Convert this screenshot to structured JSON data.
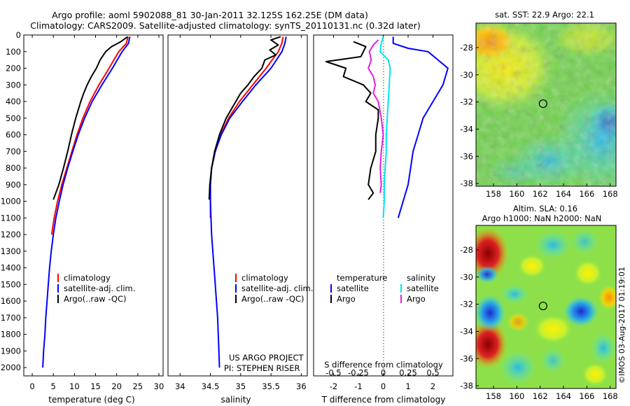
{
  "header": {
    "line1": "Argo profile: aoml 5902088_81 30-Jan-2011 32.125S 162.25E (DM data)",
    "line2": "Climatology: CARS2009. Satellite-adjusted climatology: synTS_20110131.nc (0.32d later)"
  },
  "colors": {
    "climatology": "#ff0000",
    "satellite": "#0000ff",
    "argo": "#000000",
    "salinity_sat": "#00e5ee",
    "salinity_argo": "#e020e0"
  },
  "chart_data": [
    {
      "type": "line",
      "id": "temperature",
      "xlabel": "temperature (deg C)",
      "xlim": [
        -2,
        31
      ],
      "ylim": [
        2050,
        0
      ],
      "xticks": [
        0,
        5,
        10,
        15,
        20,
        25,
        30
      ],
      "yticks": [
        0,
        100,
        200,
        300,
        400,
        500,
        600,
        700,
        800,
        900,
        1000,
        1100,
        1200,
        1300,
        1400,
        1500,
        1600,
        1700,
        1800,
        1900,
        2000
      ],
      "legend": [
        "climatology",
        "satellite-adj. clim.",
        "Argo(..raw -QC)"
      ],
      "series": [
        {
          "name": "climatology",
          "color": "#ff0000",
          "depth": [
            10,
            50,
            100,
            200,
            300,
            400,
            500,
            600,
            700,
            800,
            900,
            1000,
            1100,
            1200
          ],
          "values": [
            22.7,
            22.3,
            20.5,
            18.2,
            15.8,
            13.7,
            12.0,
            10.6,
            9.4,
            8.2,
            7.0,
            6.0,
            5.2,
            4.6
          ]
        },
        {
          "name": "satellite-adj. clim.",
          "color": "#0000ff",
          "depth": [
            10,
            50,
            100,
            200,
            300,
            400,
            500,
            600,
            700,
            800,
            900,
            1000,
            1100,
            1200,
            1300,
            1400,
            1500,
            1600,
            1700,
            1800,
            1900,
            2000
          ],
          "values": [
            23.1,
            22.8,
            21.3,
            19.0,
            16.5,
            14.2,
            12.4,
            10.9,
            9.6,
            8.4,
            7.3,
            6.4,
            5.6,
            5.0,
            4.5,
            4.1,
            3.8,
            3.5,
            3.2,
            3.0,
            2.7,
            2.5
          ]
        },
        {
          "name": "Argo(..raw -QC)",
          "color": "#000000",
          "depth": [
            10,
            40,
            70,
            100,
            150,
            200,
            250,
            300,
            350,
            400,
            450,
            500,
            600,
            700,
            800,
            900,
            990
          ],
          "values": [
            22.6,
            21.0,
            18.8,
            17.4,
            16.1,
            15.2,
            14.0,
            13.0,
            12.2,
            11.5,
            10.9,
            10.3,
            9.3,
            8.4,
            7.4,
            6.3,
            5.0
          ]
        }
      ]
    },
    {
      "type": "line",
      "id": "salinity",
      "xlabel": "salinity",
      "xlim": [
        33.8,
        36.1
      ],
      "ylim": [
        2050,
        0
      ],
      "xticks": [
        34,
        34.5,
        35,
        35.5,
        36
      ],
      "legend": [
        "climatology",
        "satellite-adj. clim.",
        "Argo(..raw -QC)"
      ],
      "credit": [
        "US ARGO PROJECT",
        "PI: STEPHEN RISER"
      ],
      "series": [
        {
          "name": "climatology",
          "color": "#ff0000",
          "depth": [
            10,
            50,
            100,
            200,
            300,
            400,
            500,
            600,
            700,
            800,
            900,
            1000,
            1100
          ],
          "values": [
            35.7,
            35.68,
            35.62,
            35.42,
            35.2,
            34.98,
            34.8,
            34.67,
            34.58,
            34.52,
            34.5,
            34.5,
            34.5
          ]
        },
        {
          "name": "satellite-adj. clim.",
          "color": "#0000ff",
          "depth": [
            10,
            50,
            100,
            200,
            300,
            400,
            500,
            600,
            700,
            800,
            900,
            1000,
            1100,
            1200,
            1300,
            1400,
            1500,
            1600,
            1700,
            1800,
            1900,
            2000
          ],
          "values": [
            35.75,
            35.73,
            35.68,
            35.5,
            35.25,
            35.03,
            34.82,
            34.68,
            34.58,
            34.52,
            34.5,
            34.5,
            34.51,
            34.52,
            34.54,
            34.56,
            34.58,
            34.6,
            34.62,
            34.63,
            34.64,
            34.65
          ]
        },
        {
          "name": "Argo(..raw -QC)",
          "color": "#000000",
          "depth": [
            10,
            30,
            60,
            90,
            120,
            150,
            200,
            250,
            300,
            350,
            400,
            500,
            600,
            700,
            800,
            900,
            990
          ],
          "values": [
            35.66,
            35.5,
            35.62,
            35.48,
            35.58,
            35.4,
            35.35,
            35.22,
            35.12,
            35.0,
            34.92,
            34.76,
            34.65,
            34.57,
            34.52,
            34.49,
            34.48
          ]
        }
      ]
    },
    {
      "type": "line",
      "id": "difference",
      "xlabel": "T difference from climatology",
      "xlabel_top": "S difference from climatology",
      "xlim": [
        -2.8,
        2.8
      ],
      "ylim": [
        2050,
        0
      ],
      "xticks": [
        -2,
        -1,
        0,
        1,
        2
      ],
      "xticks_top": [
        -0.5,
        -0.25,
        0,
        0.25,
        0.5
      ],
      "legend_headers": [
        "temperature",
        "salinity"
      ],
      "legend": [
        "satellite",
        "Argo",
        "satellite",
        "Argo"
      ],
      "series": [
        {
          "name": "temperature satellite",
          "color": "#0000ff",
          "depth": [
            10,
            50,
            80,
            100,
            150,
            200,
            300,
            400,
            500,
            600,
            700,
            800,
            900,
            1000,
            1100
          ],
          "values": [
            0.4,
            0.4,
            1.0,
            1.8,
            2.2,
            2.6,
            2.4,
            2.0,
            1.6,
            1.4,
            1.2,
            1.1,
            1.0,
            0.8,
            0.6
          ]
        },
        {
          "name": "temperature Argo",
          "color": "#000000",
          "depth": [
            40,
            70,
            100,
            130,
            160,
            200,
            250,
            300,
            350,
            400,
            450,
            500,
            600,
            700,
            800,
            900,
            950,
            990
          ],
          "values": [
            -1.2,
            -0.7,
            -0.8,
            -0.9,
            -2.3,
            -1.5,
            -1.6,
            -0.8,
            -0.5,
            -0.7,
            -0.2,
            -0.2,
            -0.3,
            -0.3,
            -0.5,
            -0.6,
            -0.4,
            -0.6
          ]
        },
        {
          "name": "salinity satellite",
          "color": "#00e5ee",
          "depth": [
            10,
            50,
            100,
            150,
            200,
            300,
            400,
            500,
            600,
            700,
            800,
            900,
            1000,
            1100
          ],
          "values": [
            0.0,
            -0.02,
            -0.03,
            0.05,
            0.07,
            0.06,
            0.05,
            0.04,
            0.03,
            0.03,
            0.02,
            0.01,
            0.01,
            0.0
          ]
        },
        {
          "name": "salinity Argo",
          "color": "#e020e0",
          "depth": [
            30,
            60,
            100,
            150,
            200,
            250,
            300,
            350,
            400,
            500,
            600,
            700,
            800,
            900,
            950
          ],
          "values": [
            -0.05,
            -0.1,
            -0.14,
            -0.12,
            -0.15,
            -0.1,
            -0.08,
            -0.1,
            -0.05,
            -0.02,
            0.0,
            -0.02,
            -0.03,
            -0.02,
            -0.03
          ]
        }
      ]
    },
    {
      "type": "heatmap",
      "id": "sst-map",
      "title": "sat. SST: 22.9 Argo: 22.1",
      "xticks": [
        158,
        160,
        162,
        164,
        166,
        168
      ],
      "yticks": [
        -28,
        -30,
        -32,
        -34,
        -36,
        -38
      ],
      "xlim": [
        156.5,
        168.5
      ],
      "ylim": [
        -38.2,
        -26.2
      ],
      "marker": {
        "lon": 162.25,
        "lat": -32.125
      }
    },
    {
      "type": "heatmap",
      "id": "sla-map",
      "title": "Altim. SLA: 0.16",
      "subtitle": "Argo h1000: NaN h2000: NaN",
      "xticks": [
        158,
        160,
        162,
        164,
        166,
        168
      ],
      "yticks": [
        -28,
        -30,
        -32,
        -34,
        -36,
        -38
      ],
      "xlim": [
        156.5,
        168.5
      ],
      "ylim": [
        -38.2,
        -26.2
      ],
      "marker": {
        "lon": 162.25,
        "lat": -32.125
      }
    }
  ],
  "watermark": "©IMOS 03-Aug-2017 01:19:01"
}
